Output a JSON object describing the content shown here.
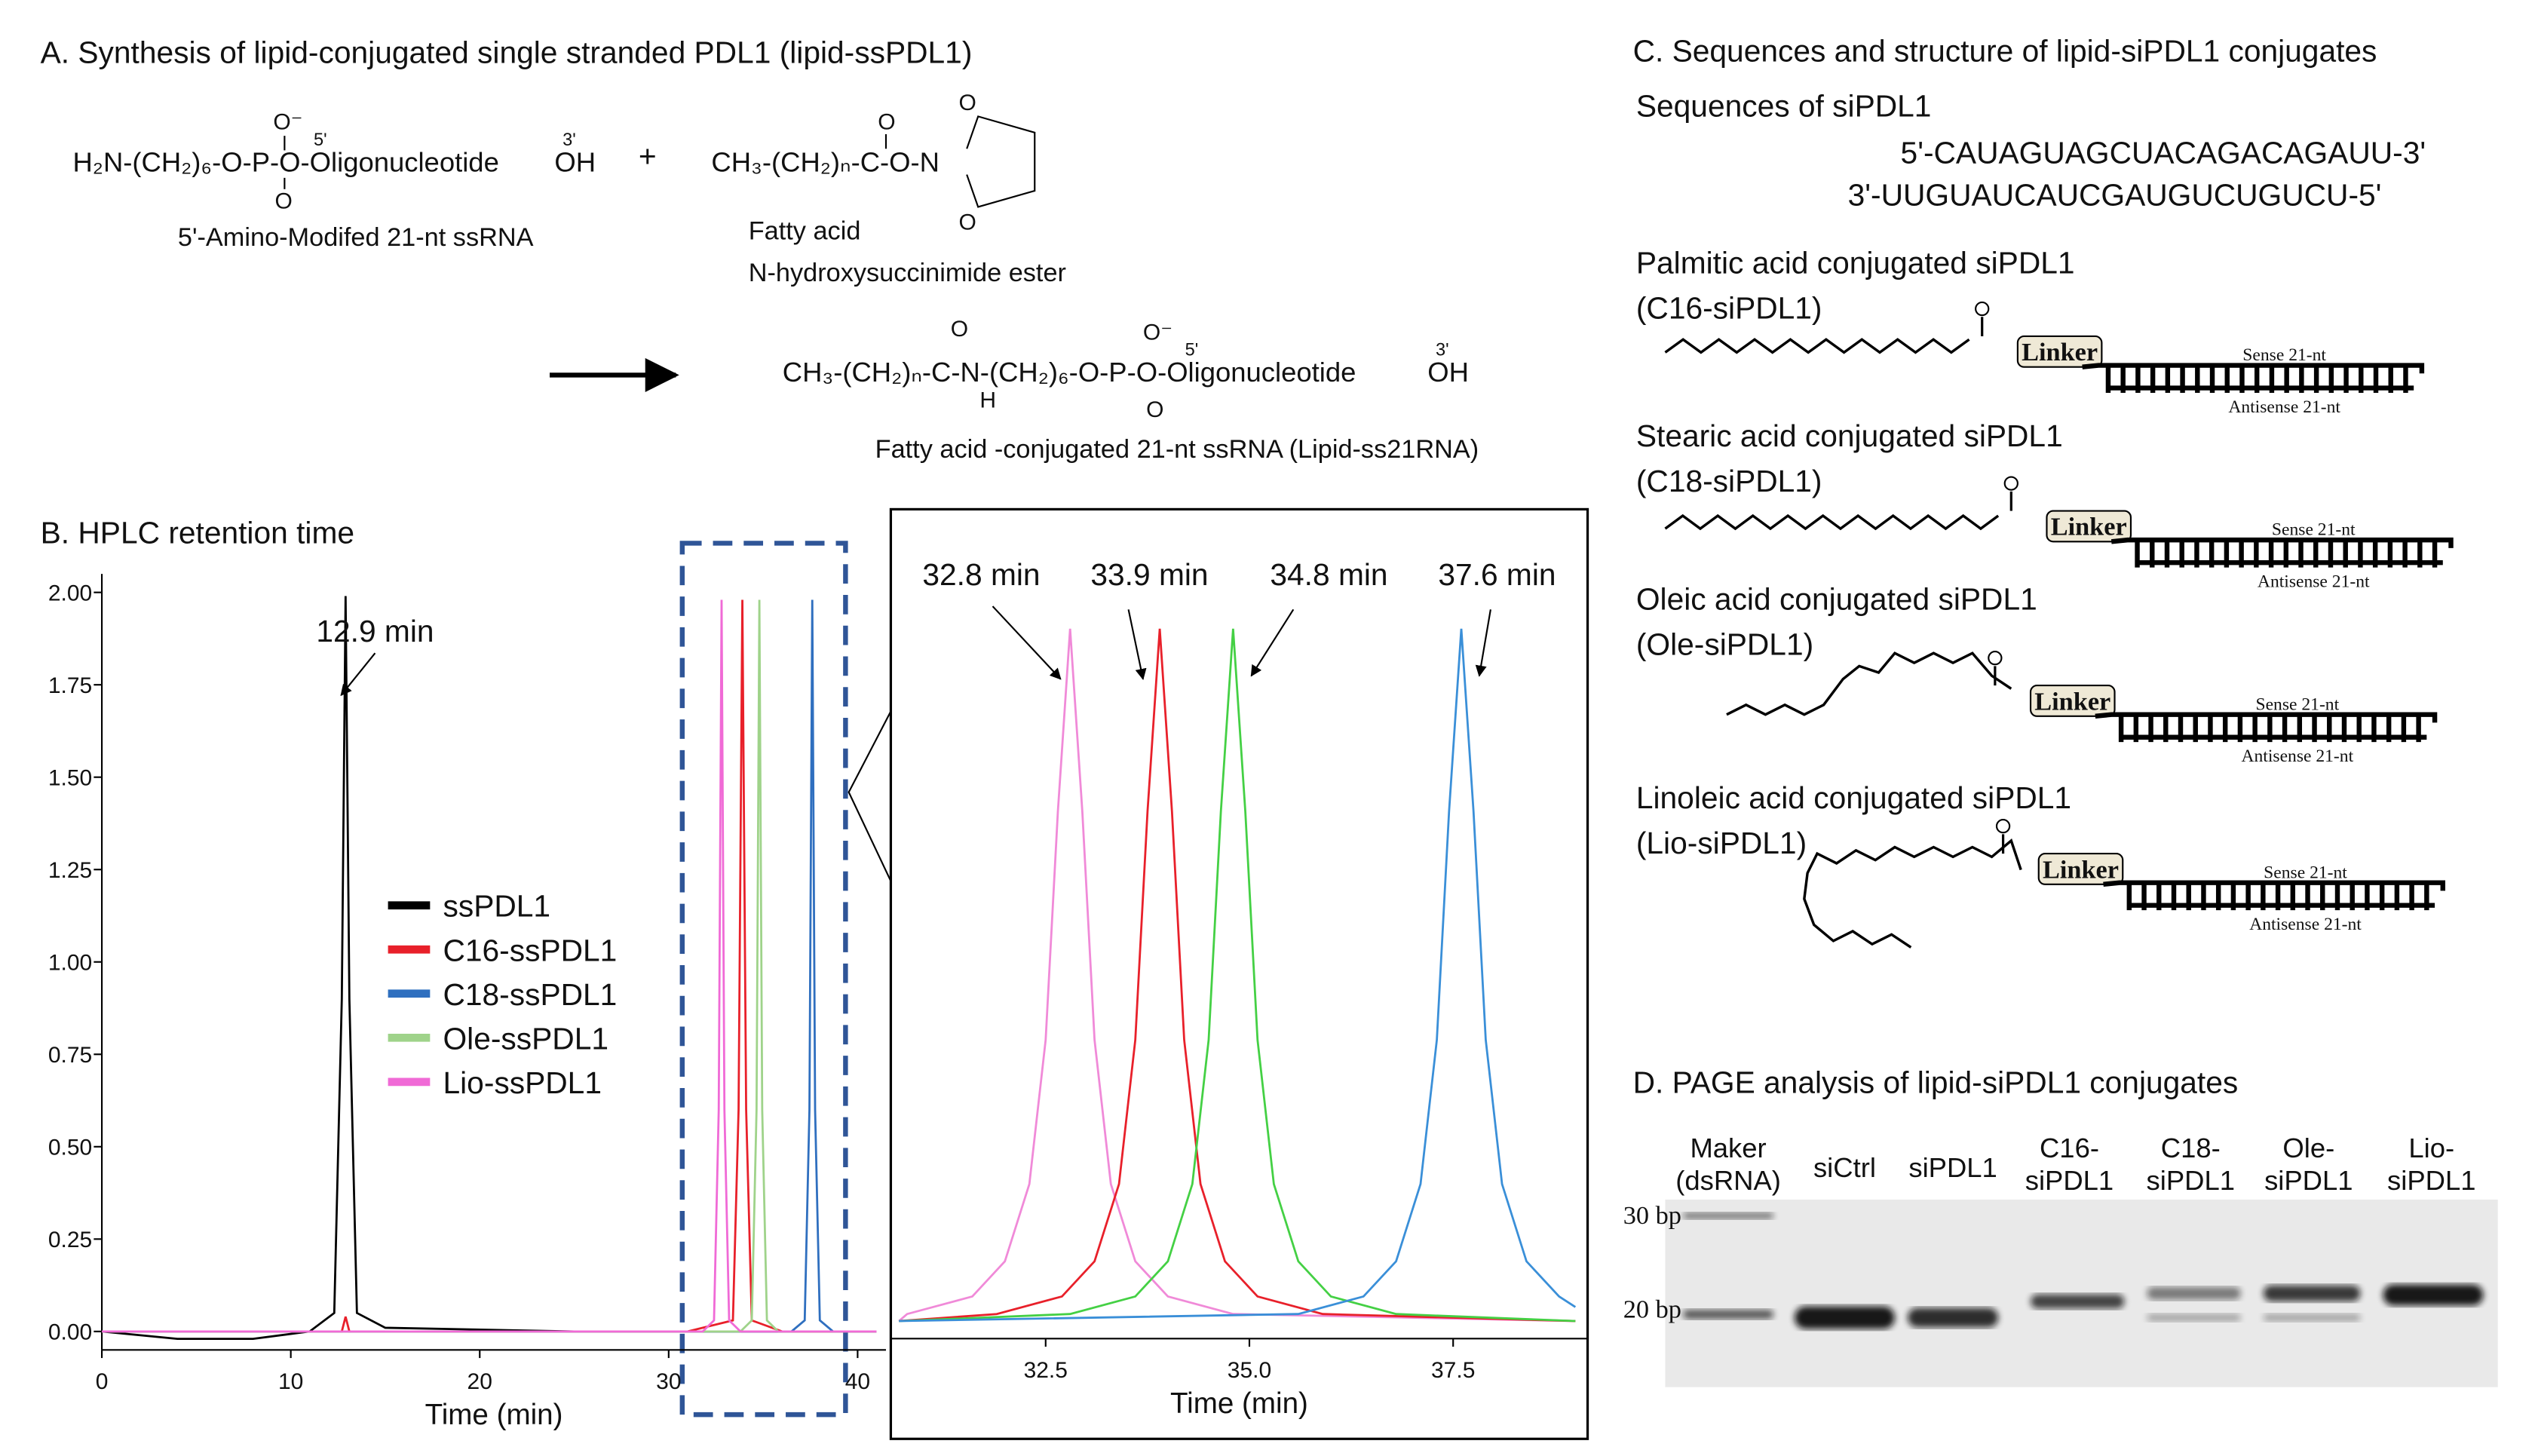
{
  "panel_a": {
    "title": "A. Synthesis of lipid-conjugated single stranded PDL1 (lipid-ssPDL1)",
    "formula_1": "H₂N-(CH₂)₆-O-P-O-Oligonucleotide",
    "formula_2": "CH₃-(CH₂)ₙ-C-O-N",
    "formula_3": "CH₃-(CH₂)ₙ-C-N-(CH₂)₆-O-P-O-Oligonucleotide",
    "oh": "OH",
    "o_minus": "O⁻",
    "o": "O",
    "h": "H",
    "five_prime": "5'",
    "three_prime": "3'",
    "caption_1": "5'-Amino-Modifed 21-nt ssRNA",
    "caption_2": [
      "Fatty acid",
      "N-hydroxysuccinimide ester"
    ],
    "caption_3": "Fatty acid -conjugated 21-nt ssRNA (Lipid-ss21RNA)",
    "plus": "+"
  },
  "panel_b": {
    "title": "B. HPLC retention time"
  },
  "chart_data": [
    {
      "type": "line",
      "xlabel": "Time (min)",
      "xlim": [
        0,
        41.5
      ],
      "xticks": [
        0,
        10,
        20,
        30,
        40
      ],
      "ylim": [
        -0.05,
        2.05
      ],
      "yticks": [
        {
          "value": 0,
          "label": "0.00"
        },
        {
          "value": 0.25,
          "label": "0.25"
        },
        {
          "value": 0.5,
          "label": "0.50"
        },
        {
          "value": 0.75,
          "label": "0.75"
        },
        {
          "value": 1,
          "label": "1.00"
        },
        {
          "value": 1.25,
          "label": "1.25"
        },
        {
          "value": 1.5,
          "label": "1.50"
        },
        {
          "value": 1.75,
          "label": "1.75"
        },
        {
          "value": 2,
          "label": "2.00"
        }
      ],
      "legend": true,
      "annotations": [
        "12.9 min"
      ],
      "series": [
        {
          "name": "ssPDL1",
          "color": "#000000",
          "x": [
            0,
            4,
            8,
            11,
            12.3,
            12.7,
            12.9,
            13.1,
            13.5,
            15,
            25,
            41
          ],
          "values": [
            0,
            -0.02,
            -0.02,
            0,
            0.05,
            0.9,
            1.99,
            0.9,
            0.05,
            0.01,
            0,
            0
          ]
        },
        {
          "name": "C16-ssPDL1",
          "color": "#e8202a",
          "x": [
            0,
            12.7,
            12.9,
            13.1,
            31,
            33.4,
            33.7,
            33.9,
            34.1,
            34.4,
            36,
            41
          ],
          "values": [
            0,
            0,
            0.04,
            0,
            0,
            0.03,
            0.6,
            1.98,
            0.6,
            0.03,
            0,
            0
          ]
        },
        {
          "name": "C18-ssPDL1",
          "color": "#2f6fbf",
          "x": [
            0,
            36.5,
            37.2,
            37.45,
            37.6,
            37.75,
            38.0,
            38.7,
            41
          ],
          "values": [
            0,
            0,
            0.03,
            0.6,
            1.98,
            0.6,
            0.03,
            0,
            0
          ]
        },
        {
          "name": "Ole-ssPDL1",
          "color": "#9fd38a",
          "x": [
            0,
            33.8,
            34.4,
            34.65,
            34.8,
            34.95,
            35.2,
            35.8,
            41
          ],
          "values": [
            0,
            0,
            0.03,
            0.6,
            1.98,
            0.6,
            0.03,
            0,
            0
          ]
        },
        {
          "name": "Lio-ssPDL1",
          "color": "#f06ad6",
          "x": [
            0,
            31.8,
            32.4,
            32.65,
            32.8,
            32.95,
            33.2,
            33.8,
            41
          ],
          "values": [
            0,
            0,
            0.03,
            0.6,
            1.98,
            0.6,
            0.03,
            0,
            0
          ]
        }
      ]
    },
    {
      "type": "line",
      "xlabel": "Time (min)",
      "xlim": [
        30.6,
        39.15
      ],
      "xticks": [
        {
          "value": 32.5,
          "label": "32.5"
        },
        {
          "value": 35,
          "label": "35.0"
        },
        {
          "value": 37.5,
          "label": "37.5"
        }
      ],
      "ylim": [
        -0.04,
        2.32
      ],
      "legend": false,
      "annotations": [
        "32.8 min",
        "33.9 min",
        "34.8 min",
        "37.6 min"
      ],
      "series": [
        {
          "color": "#f08ad8",
          "x": [
            30.7,
            30.8,
            31.6,
            32.0,
            32.3,
            32.5,
            32.65,
            32.8,
            32.95,
            33.1,
            33.3,
            33.6,
            34.0,
            34.8,
            39.0
          ],
          "values": [
            0.01,
            0.03,
            0.08,
            0.18,
            0.4,
            0.81,
            1.46,
            1.98,
            1.46,
            0.81,
            0.4,
            0.18,
            0.08,
            0.03,
            0.01
          ]
        },
        {
          "color": "#e8202a",
          "x": [
            30.7,
            31.9,
            32.7,
            33.1,
            33.4,
            33.6,
            33.75,
            33.9,
            34.05,
            34.2,
            34.4,
            34.7,
            35.1,
            35.9,
            39.0
          ],
          "values": [
            0.01,
            0.03,
            0.08,
            0.18,
            0.4,
            0.81,
            1.46,
            1.98,
            1.46,
            0.81,
            0.4,
            0.18,
            0.08,
            0.03,
            0.01
          ]
        },
        {
          "color": "#44d044",
          "x": [
            30.7,
            32.8,
            33.6,
            34.0,
            34.3,
            34.5,
            34.65,
            34.8,
            34.95,
            35.1,
            35.3,
            35.6,
            36.0,
            36.8,
            39.0
          ],
          "values": [
            0.01,
            0.03,
            0.08,
            0.18,
            0.4,
            0.81,
            1.46,
            1.98,
            1.46,
            0.81,
            0.4,
            0.18,
            0.08,
            0.03,
            0.01
          ]
        },
        {
          "color": "#3a8fd8",
          "x": [
            30.7,
            35.6,
            36.4,
            36.8,
            37.1,
            37.3,
            37.45,
            37.6,
            37.75,
            37.9,
            38.1,
            38.4,
            38.8,
            39.0
          ],
          "values": [
            0.01,
            0.03,
            0.08,
            0.18,
            0.4,
            0.81,
            1.46,
            1.98,
            1.46,
            0.81,
            0.4,
            0.18,
            0.08,
            0.05
          ]
        }
      ]
    }
  ],
  "panel_c": {
    "title": "C. Sequences and structure of lipid-siPDL1 conjugates",
    "subtitle": "Sequences of siPDL1",
    "sequence_sense": "5'-CAUAGUAGCUACAGACAGAUU-3'",
    "sequence_antisense": "3'-UUGUAUCAUCGAUGUCUGUCU-5'",
    "conjugates": [
      {
        "name": "Palmitic acid conjugated siPDL1",
        "abbrev": "(C16-siPDL1)",
        "linker": "Linker",
        "sense": "Sense 21-nt",
        "antisense": "Antisense 21-nt"
      },
      {
        "name": "Stearic acid conjugated siPDL1",
        "abbrev": "(C18-siPDL1)",
        "linker": "Linker",
        "sense": "Sense 21-nt",
        "antisense": "Antisense 21-nt"
      },
      {
        "name": "Oleic acid conjugated siPDL1",
        "abbrev": "(Ole-siPDL1)",
        "linker": "Linker",
        "sense": "Sense 21-nt",
        "antisense": "Antisense 21-nt"
      },
      {
        "name": "Linoleic acid conjugated siPDL1",
        "abbrev": "(Lio-siPDL1)",
        "linker": "Linker",
        "sense": "Sense 21-nt",
        "antisense": "Antisense 21-nt"
      }
    ]
  },
  "panel_d": {
    "title": "D. PAGE analysis of lipid-siPDL1 conjugates",
    "lanes": [
      [
        "Maker",
        "(dsRNA)"
      ],
      [
        "siCtrl"
      ],
      [
        "siPDL1"
      ],
      [
        "C16-",
        "siPDL1"
      ],
      [
        "C18-",
        "siPDL1"
      ],
      [
        "Ole-",
        "siPDL1"
      ],
      [
        "Lio-",
        "siPDL1"
      ]
    ],
    "markers": [
      "30 bp",
      "20 bp"
    ]
  }
}
